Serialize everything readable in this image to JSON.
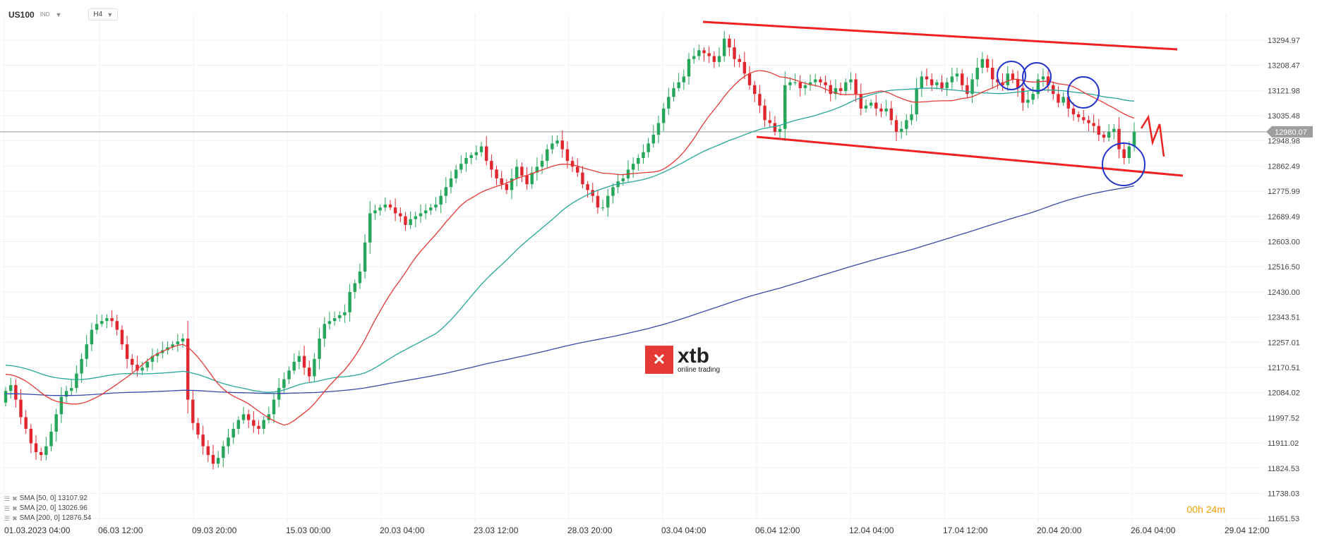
{
  "header": {
    "symbol": "US100",
    "badge": "IND",
    "timeframe": "H4"
  },
  "legend": [
    {
      "label": "SMA [50, 0] 13107.92",
      "color": "#26a69a"
    },
    {
      "label": "SMA [20, 0] 13026.96",
      "color": "#e53935"
    },
    {
      "label": "SMA [200, 0] 12876.54",
      "color": "#3949ab"
    }
  ],
  "timer": {
    "hours": "00",
    "h_unit": "h",
    "minutes": "24",
    "m_unit": "m"
  },
  "logo": {
    "brand": "xtb",
    "tagline": "online trading"
  },
  "chart_data": {
    "type": "candlestick",
    "price_axis_ticks": [
      "13294.97",
      "13208.47",
      "13121.98",
      "13035.48",
      "12948.98",
      "12862.49",
      "12775.99",
      "12689.49",
      "12603.00",
      "12516.50",
      "12430.00",
      "12343.51",
      "12257.01",
      "12170.51",
      "12084.02",
      "11997.52",
      "11911.02",
      "11824.53",
      "11738.03",
      "11651.53"
    ],
    "time_axis_ticks": [
      "01.03.2023   04:00",
      "06.03   12:00",
      "09.03   20:00",
      "15.03   00:00",
      "20.03   04:00",
      "23.03   12:00",
      "28.03   20:00",
      "03.04   04:00",
      "06.04   12:00",
      "12.04   04:00",
      "17.04   12:00",
      "20.04   20:00",
      "26.04   04:00",
      "29.04   12:00"
    ],
    "current_price": "12980.07",
    "ylim": [
      11640,
      13360
    ],
    "closes": [
      12090,
      12110,
      12060,
      12000,
      11960,
      11910,
      11880,
      11870,
      11900,
      11950,
      12010,
      12070,
      12090,
      12100,
      12150,
      12200,
      12250,
      12300,
      12320,
      12330,
      12340,
      12330,
      12300,
      12250,
      12200,
      12180,
      12160,
      12170,
      12190,
      12210,
      12220,
      12230,
      12240,
      12250,
      12260,
      12270,
      12060,
      11980,
      11940,
      11900,
      11870,
      11840,
      11860,
      11900,
      11930,
      11960,
      11990,
      12010,
      11990,
      11970,
      11960,
      11990,
      12010,
      12060,
      12100,
      12130,
      12160,
      12190,
      12210,
      12170,
      12140,
      12200,
      12270,
      12320,
      12330,
      12340,
      12350,
      12360,
      12430,
      12460,
      12500,
      12600,
      12700,
      12710,
      12720,
      12730,
      12720,
      12700,
      12690,
      12660,
      12680,
      12690,
      12700,
      12710,
      12720,
      12730,
      12760,
      12790,
      12820,
      12850,
      12870,
      12890,
      12900,
      12910,
      12930,
      12880,
      12850,
      12820,
      12800,
      12780,
      12820,
      12860,
      12830,
      12800,
      12840,
      12860,
      12880,
      12920,
      12940,
      12950,
      12920,
      12880,
      12860,
      12840,
      12800,
      12780,
      12760,
      12720,
      12720,
      12760,
      12790,
      12810,
      12820,
      12850,
      12870,
      12890,
      12910,
      12940,
      12970,
      13010,
      13060,
      13100,
      13130,
      13150,
      13170,
      13230,
      13240,
      13260,
      13250,
      13240,
      13220,
      13240,
      13300,
      13270,
      13230,
      13220,
      13180,
      13140,
      13110,
      13070,
      13020,
      13010,
      12980,
      12990,
      13140,
      13150,
      13150,
      13130,
      13140,
      13150,
      13160,
      13150,
      13140,
      13110,
      13130,
      13120,
      13150,
      13160,
      13110,
      13060,
      13070,
      13080,
      13060,
      13050,
      13060,
      13020,
      12980,
      12990,
      13020,
      13040,
      13130,
      13170,
      13160,
      13140,
      13150,
      13130,
      13150,
      13170,
      13180,
      13140,
      13110,
      13160,
      13200,
      13230,
      13200,
      13160,
      13150,
      13140,
      13180,
      13160,
      13130,
      13080,
      13090,
      13110,
      13160,
      13170,
      13140,
      13110,
      13080,
      13100,
      13060,
      13040,
      13030,
      13020,
      13010,
      13000,
      12970,
      12960,
      12980,
      12990,
      12920,
      12890,
      12930,
      12980
    ]
  }
}
